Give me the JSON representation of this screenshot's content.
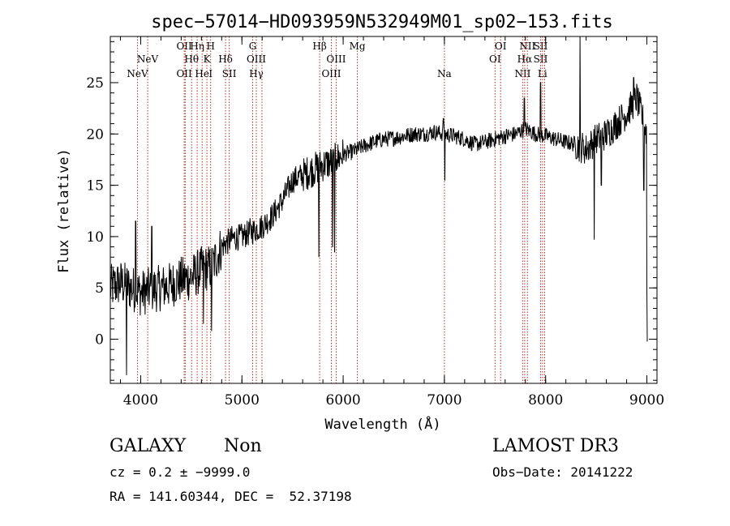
{
  "chart_data": {
    "type": "line",
    "title": "spec−57014−HD093959N532949M01_sp02−153.fits",
    "xlabel": "Wavelength (Å)",
    "ylabel": "Flux (relative)",
    "xlim": [
      3700,
      9100
    ],
    "ylim": [
      -4.3,
      29.5
    ],
    "xticks": [
      4000,
      5000,
      6000,
      7000,
      8000,
      9000
    ],
    "xtick_labels": [
      "4000",
      "5000",
      "6000",
      "7000",
      "8000",
      "9000"
    ],
    "xminor_step": 200,
    "yticks": [
      0,
      5,
      10,
      15,
      20,
      25
    ],
    "ytick_labels": [
      "0",
      "5",
      "10",
      "15",
      "20",
      "25"
    ],
    "yminor_step": 1,
    "grid": false,
    "line_color": "#000000",
    "marker_color": "#b03020",
    "series": [
      {
        "name": "flux",
        "anchors": [
          [
            3700,
            5.0
          ],
          [
            3800,
            5.5
          ],
          [
            3900,
            5.0
          ],
          [
            4000,
            4.5
          ],
          [
            4100,
            4.8
          ],
          [
            4200,
            5.0
          ],
          [
            4300,
            5.3
          ],
          [
            4400,
            5.8
          ],
          [
            4500,
            6.0
          ],
          [
            4600,
            6.8
          ],
          [
            4700,
            7.0
          ],
          [
            4800,
            9.0
          ],
          [
            4900,
            9.8
          ],
          [
            5000,
            10.0
          ],
          [
            5100,
            10.5
          ],
          [
            5200,
            11.0
          ],
          [
            5300,
            12.0
          ],
          [
            5400,
            13.5
          ],
          [
            5500,
            15.5
          ],
          [
            5600,
            16.0
          ],
          [
            5700,
            16.5
          ],
          [
            5800,
            17.0
          ],
          [
            5900,
            17.3
          ],
          [
            6000,
            18.0
          ],
          [
            6100,
            18.3
          ],
          [
            6200,
            18.8
          ],
          [
            6300,
            19.2
          ],
          [
            6400,
            19.5
          ],
          [
            6500,
            19.6
          ],
          [
            6600,
            19.8
          ],
          [
            6700,
            20.0
          ],
          [
            6800,
            20.0
          ],
          [
            6900,
            20.2
          ],
          [
            7000,
            20.0
          ],
          [
            7100,
            19.8
          ],
          [
            7200,
            19.5
          ],
          [
            7300,
            19.0
          ],
          [
            7400,
            19.2
          ],
          [
            7500,
            19.5
          ],
          [
            7600,
            19.8
          ],
          [
            7700,
            20.0
          ],
          [
            7800,
            20.5
          ],
          [
            7900,
            20.0
          ],
          [
            8000,
            19.8
          ],
          [
            8100,
            19.5
          ],
          [
            8200,
            19.2
          ],
          [
            8300,
            19.0
          ],
          [
            8400,
            18.5
          ],
          [
            8500,
            19.5
          ],
          [
            8600,
            20.0
          ],
          [
            8700,
            21.0
          ],
          [
            8800,
            22.0
          ],
          [
            8900,
            23.5
          ],
          [
            9000,
            20.0
          ]
        ],
        "features": [
          {
            "x": 3860,
            "y": -3.5
          },
          {
            "x": 3950,
            "y": 11.5
          },
          {
            "x": 4110,
            "y": 11.0
          },
          {
            "x": 4620,
            "y": 1.5
          },
          {
            "x": 4700,
            "y": 0.8
          },
          {
            "x": 5080,
            "y": 11.8
          },
          {
            "x": 5760,
            "y": 8.0
          },
          {
            "x": 5895,
            "y": 9.0
          },
          {
            "x": 5915,
            "y": 8.5
          },
          {
            "x": 5935,
            "y": 17.5
          },
          {
            "x": 6990,
            "y": 21.5
          },
          {
            "x": 7005,
            "y": 15.5
          },
          {
            "x": 7790,
            "y": 23.5
          },
          {
            "x": 7950,
            "y": 25.0
          },
          {
            "x": 8340,
            "y": 29.5
          },
          {
            "x": 8480,
            "y": 9.7
          },
          {
            "x": 8550,
            "y": 15.0
          },
          {
            "x": 8870,
            "y": 25.5
          },
          {
            "x": 8970,
            "y": 14.5
          },
          {
            "x": 9000,
            "y": 5.0
          },
          {
            "x": 9005,
            "y": -0.2
          }
        ]
      }
    ],
    "line_markers": [
      {
        "x": 3969,
        "labels": [
          {
            "text": "NeV",
            "row": 3
          }
        ]
      },
      {
        "x": 4069,
        "labels": [
          {
            "text": "NeV",
            "row": 2
          }
        ]
      },
      {
        "x": 4430,
        "labels": [
          {
            "text": "OII",
            "row": 1
          },
          {
            "text": "OII",
            "row": 3
          }
        ]
      },
      {
        "x": 4440,
        "labels": []
      },
      {
        "x": 4503,
        "labels": [
          {
            "text": "Hθ",
            "row": 2
          }
        ]
      },
      {
        "x": 4558,
        "labels": [
          {
            "text": "Hη",
            "row": 1
          }
        ]
      },
      {
        "x": 4607,
        "labels": [
          {
            "text": "He",
            "row": 3
          }
        ]
      },
      {
        "x": 4654,
        "labels": [
          {
            "text": "K",
            "row": 2
          }
        ]
      },
      {
        "x": 4691,
        "labels": [
          {
            "text": "H",
            "row": 1
          },
          {
            "text": "I",
            "row": 3
          }
        ]
      },
      {
        "x": 4838,
        "labels": [
          {
            "text": "Hδ",
            "row": 2
          }
        ]
      },
      {
        "x": 4875,
        "labels": [
          {
            "text": "SII",
            "row": 3
          }
        ]
      },
      {
        "x": 5106,
        "labels": [
          {
            "text": "G",
            "row": 1
          }
        ]
      },
      {
        "x": 5142,
        "labels": [
          {
            "text": "OIII",
            "row": 2
          },
          {
            "text": "Hγ",
            "row": 3
          }
        ]
      },
      {
        "x": 5198,
        "labels": []
      },
      {
        "x": 5768,
        "labels": [
          {
            "text": "Hβ",
            "row": 1
          }
        ]
      },
      {
        "x": 5883,
        "labels": [
          {
            "text": "OIII",
            "row": 3
          }
        ]
      },
      {
        "x": 5931,
        "labels": [
          {
            "text": "OIII",
            "row": 2
          }
        ]
      },
      {
        "x": 6140,
        "labels": [
          {
            "text": "Mg",
            "row": 1
          }
        ]
      },
      {
        "x": 7000,
        "labels": [
          {
            "text": "Na",
            "row": 3
          }
        ]
      },
      {
        "x": 7500,
        "labels": [
          {
            "text": "OI",
            "row": 2
          }
        ]
      },
      {
        "x": 7555,
        "labels": [
          {
            "text": "OI",
            "row": 1
          }
        ]
      },
      {
        "x": 7773,
        "labels": [
          {
            "text": "NII",
            "row": 3
          }
        ]
      },
      {
        "x": 7793,
        "labels": [
          {
            "text": "Hα",
            "row": 2
          }
        ]
      },
      {
        "x": 7820,
        "labels": [
          {
            "text": "NII",
            "row": 1
          }
        ]
      },
      {
        "x": 7950,
        "labels": [
          {
            "text": "SII",
            "row": 1
          },
          {
            "text": "SII",
            "row": 2
          }
        ]
      },
      {
        "x": 7969,
        "labels": [
          {
            "text": "Li",
            "row": 3
          }
        ]
      },
      {
        "x": 7990,
        "labels": []
      }
    ]
  },
  "footer": {
    "class_label": "GALAXY",
    "subclass_label": "Non",
    "survey": "LAMOST DR3",
    "cz": "cz = 0.2 ± −9999.0",
    "obs_date": "Obs−Date: 20141222",
    "coords": "RA = 141.60344, DEC =  52.37198"
  }
}
